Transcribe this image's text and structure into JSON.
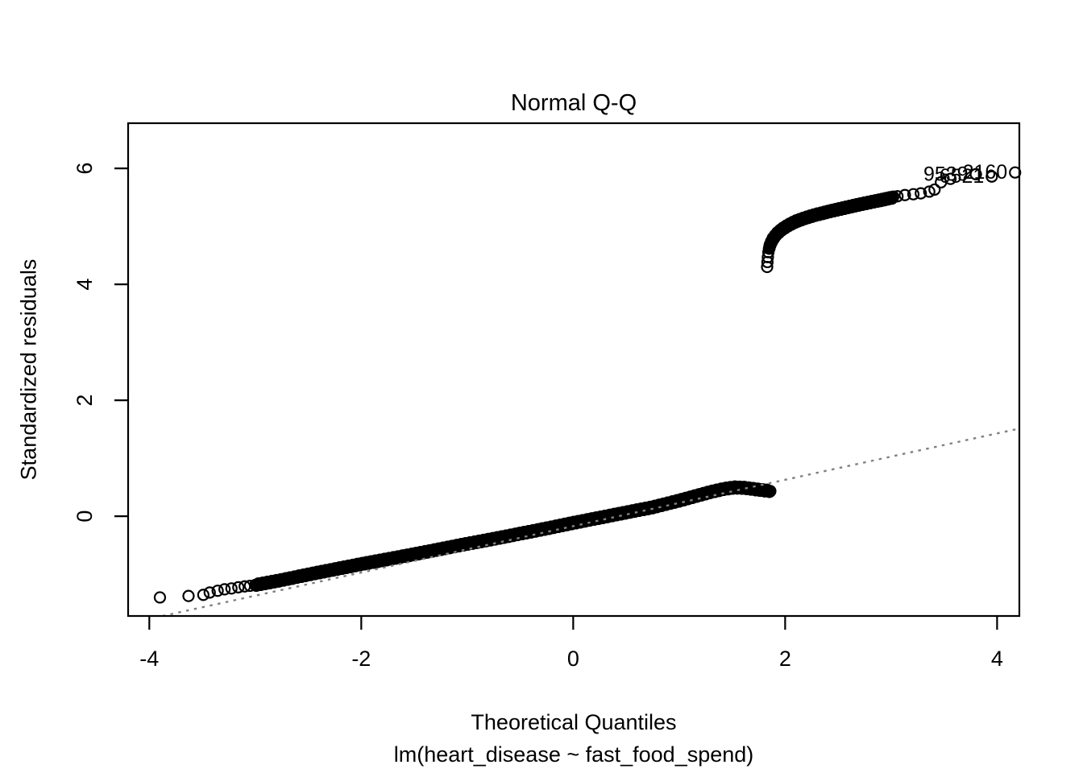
{
  "figure": {
    "background": "#ffffff",
    "foreground": "#000000"
  },
  "chart_data": {
    "type": "scatter",
    "subtype": "normal-qq-plot",
    "title": "Normal Q-Q",
    "xlabel": "Theoretical Quantiles",
    "sub_caption": "lm(heart_disease ~ fast_food_spend)",
    "ylabel": "Standardized residuals",
    "x_ticks": [
      -4,
      -2,
      0,
      2,
      4
    ],
    "y_ticks": [
      0,
      2,
      4,
      6
    ],
    "xlim": [
      -4.2,
      4.21
    ],
    "ylim": [
      -1.72,
      6.78
    ],
    "grid": false,
    "legend": null,
    "reference_line": {
      "description": "qqline, dotted gray, drawn over points",
      "slope": 0.4,
      "intercept": -0.17,
      "color": "#808080",
      "style": "dotted"
    },
    "marker": {
      "style": "open-circle",
      "radius_px": 6.5,
      "stroke_px": 2.2,
      "color": "#000000"
    },
    "lower_outlier_points": [
      [
        -3.9,
        -1.4
      ],
      [
        -3.63,
        -1.375
      ],
      [
        -3.49,
        -1.355
      ],
      [
        -3.43,
        -1.315
      ],
      [
        -3.355,
        -1.285
      ],
      [
        -3.29,
        -1.26
      ],
      [
        -3.225,
        -1.245
      ],
      [
        -3.16,
        -1.225
      ],
      [
        -3.1,
        -1.21
      ],
      [
        -3.05,
        -1.2
      ]
    ],
    "lower_branch": {
      "description": "dense band of overlapping open circles below the gap",
      "n_points": 1700,
      "curve": [
        [
          -3.0,
          -1.185
        ],
        [
          -2.75,
          -1.1
        ],
        [
          -2.5,
          -1.005
        ],
        [
          -2.25,
          -0.915
        ],
        [
          -2.0,
          -0.825
        ],
        [
          -1.75,
          -0.74
        ],
        [
          -1.5,
          -0.655
        ],
        [
          -1.25,
          -0.565
        ],
        [
          -1.0,
          -0.475
        ],
        [
          -0.75,
          -0.39
        ],
        [
          -0.5,
          -0.3
        ],
        [
          -0.25,
          -0.21
        ],
        [
          0.0,
          -0.115
        ],
        [
          0.25,
          -0.025
        ],
        [
          0.5,
          0.065
        ],
        [
          0.75,
          0.155
        ],
        [
          1.0,
          0.27
        ],
        [
          1.15,
          0.345
        ],
        [
          1.3,
          0.42
        ],
        [
          1.42,
          0.47
        ],
        [
          1.52,
          0.497
        ],
        [
          1.62,
          0.49
        ],
        [
          1.72,
          0.465
        ],
        [
          1.8,
          0.447
        ],
        [
          1.86,
          0.435
        ]
      ]
    },
    "upper_hook_points": [
      [
        1.83,
        4.3
      ],
      [
        1.833,
        4.385
      ],
      [
        1.837,
        4.47
      ],
      [
        1.842,
        4.555
      ]
    ],
    "upper_branch": {
      "description": "dense band of overlapping open circles above the gap",
      "n_points": 560,
      "curve": [
        [
          1.848,
          4.62
        ],
        [
          1.862,
          4.7
        ],
        [
          1.885,
          4.785
        ],
        [
          1.92,
          4.87
        ],
        [
          1.97,
          4.95
        ],
        [
          2.03,
          5.02
        ],
        [
          2.1,
          5.085
        ],
        [
          2.19,
          5.145
        ],
        [
          2.29,
          5.2
        ],
        [
          2.41,
          5.255
        ],
        [
          2.54,
          5.31
        ],
        [
          2.67,
          5.365
        ],
        [
          2.8,
          5.415
        ],
        [
          2.92,
          5.46
        ],
        [
          3.02,
          5.5
        ]
      ]
    },
    "upper_sparse_points": [
      [
        3.06,
        5.52
      ],
      [
        3.13,
        5.54
      ],
      [
        3.21,
        5.555
      ],
      [
        3.28,
        5.57
      ],
      [
        3.36,
        5.6
      ],
      [
        3.41,
        5.635
      ],
      [
        3.47,
        5.76
      ],
      [
        3.56,
        5.82
      ]
    ],
    "labeled_points": [
      {
        "x": 3.8,
        "y": 5.9,
        "label": "9539"
      },
      {
        "x": 3.95,
        "y": 5.86,
        "label": "6521"
      },
      {
        "x": 4.17,
        "y": 5.93,
        "label": "2160"
      }
    ],
    "labels_overlapping": true
  }
}
